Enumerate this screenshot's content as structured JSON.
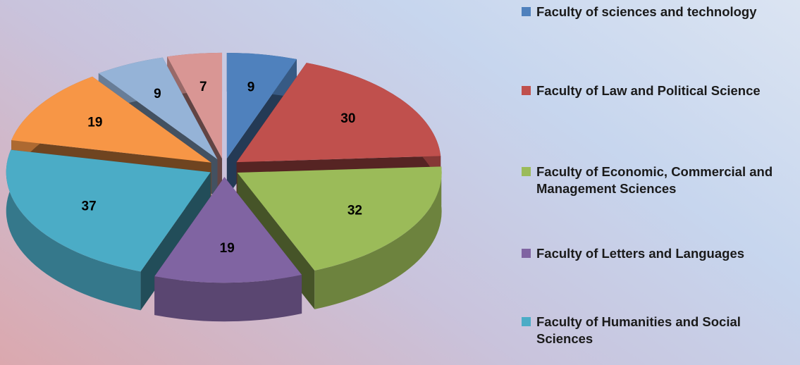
{
  "chart_data": {
    "type": "pie",
    "three_d": true,
    "exploded": true,
    "categories": [
      "Faculty of sciences and technology",
      "Faculty of Law and Political Science",
      "Faculty of Economic, Commercial and Management Sciences",
      "Faculty of Letters and Languages",
      "Faculty of Humanities and Social Sciences",
      null,
      null,
      null
    ],
    "values": [
      9,
      30,
      32,
      19,
      37,
      19,
      9,
      7
    ],
    "colors": [
      "#4f81bd",
      "#c0504d",
      "#9bbb59",
      "#8064a2",
      "#4bacc6",
      "#f79646",
      "#95b3d7",
      "#d99694"
    ]
  }
}
